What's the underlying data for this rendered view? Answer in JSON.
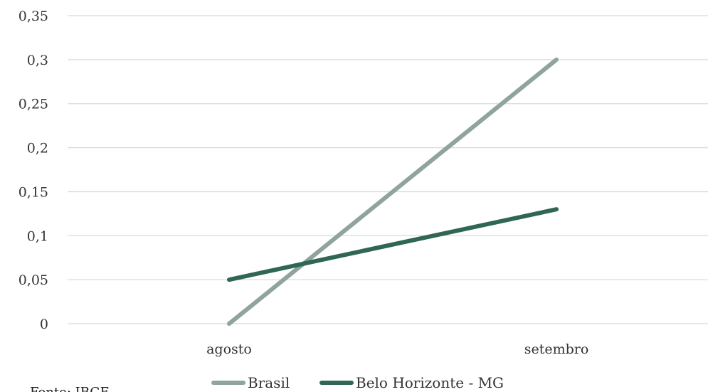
{
  "chart_data": {
    "type": "line",
    "title": "",
    "xlabel": "",
    "ylabel": "",
    "categories": [
      "agosto",
      "setembro"
    ],
    "y_ticks": [
      "0",
      "0,05",
      "0,1",
      "0,15",
      "0,2",
      "0,25",
      "0,3",
      "0,35"
    ],
    "ylim": [
      0,
      0.35
    ],
    "grid": true,
    "legend_position": "bottom",
    "series": [
      {
        "name": "Brasil",
        "values": [
          0,
          0.3
        ],
        "color": "#8fa49b"
      },
      {
        "name": "Belo Horizonte - MG",
        "values": [
          0.05,
          0.13
        ],
        "color": "#2f6656"
      }
    ]
  },
  "source": "Fonte: IBGE",
  "colors": {
    "grid": "#cfe0da",
    "text": "#333333"
  }
}
